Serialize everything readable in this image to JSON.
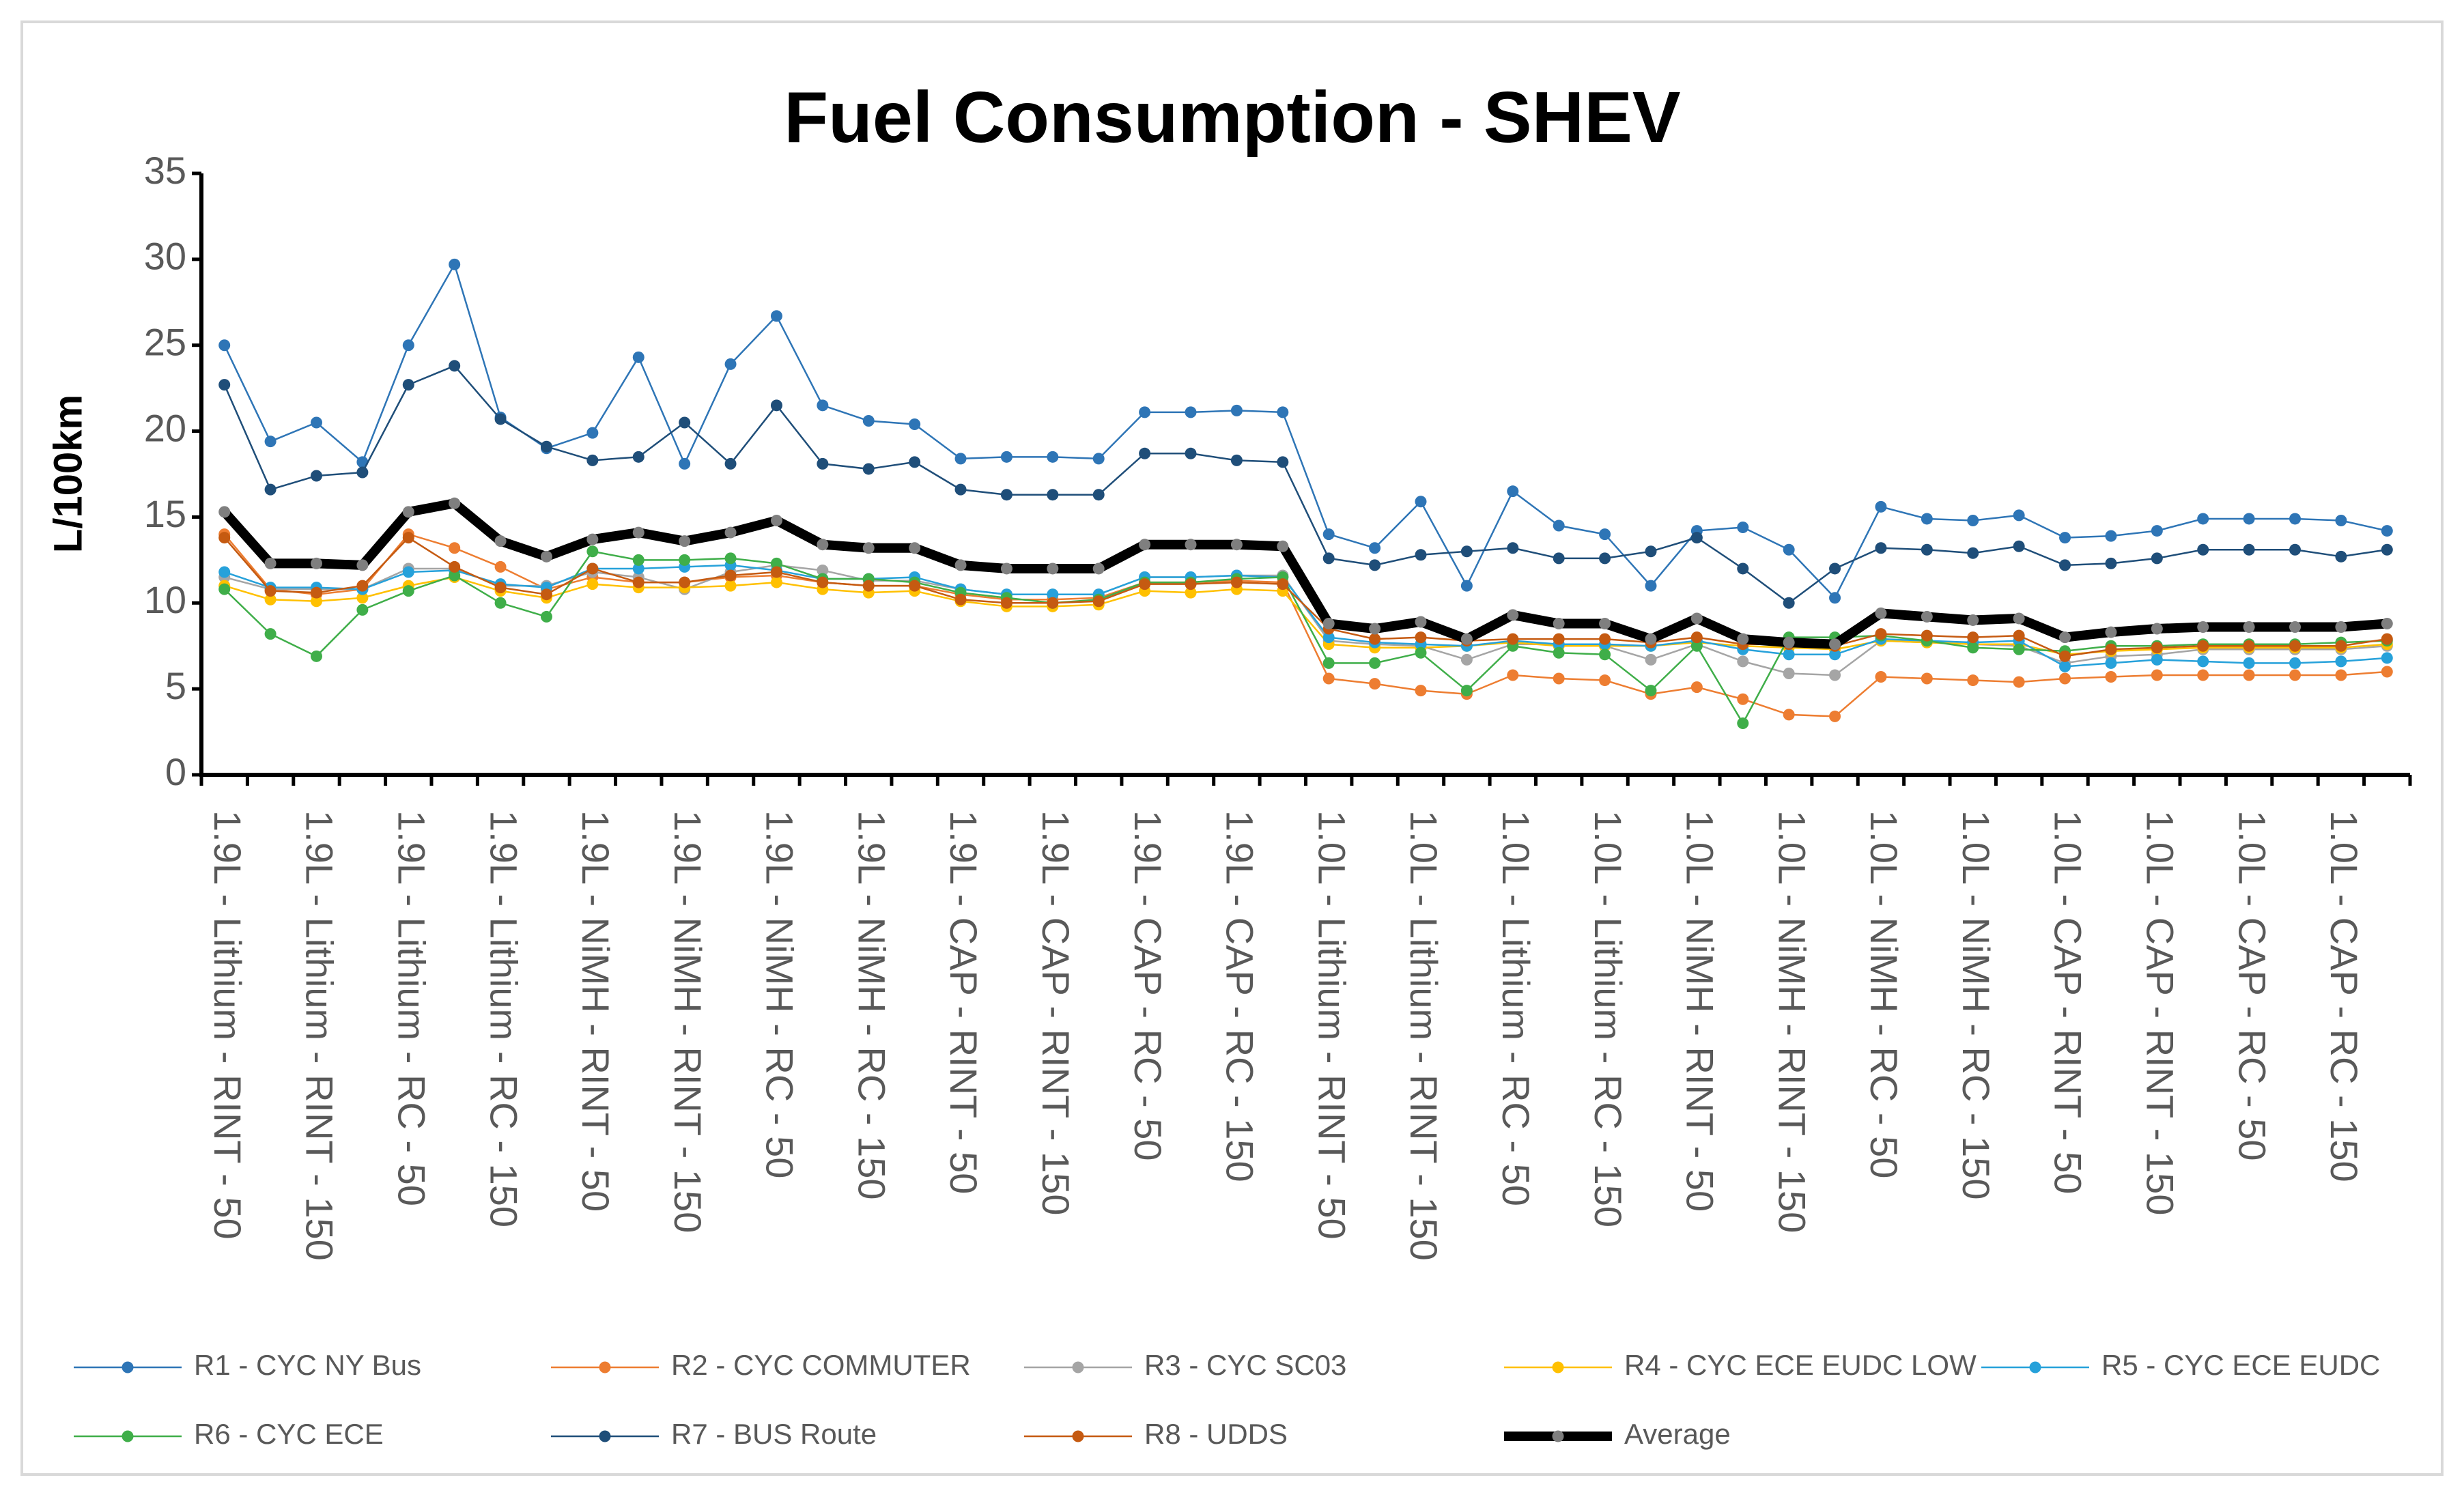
{
  "chart_data": {
    "type": "line",
    "title": "Fuel Consumption - SHEV",
    "y_label": "L/100km",
    "categories": [
      "1.9L - Lithium - RINT - 50",
      null,
      "1.9L - Lithium - RINT - 150",
      null,
      "1.9L - Lithium - RC - 50",
      null,
      "1.9L - Lithium - RC - 150",
      null,
      "1.9L - NiMH - RINT - 50",
      null,
      "1.9L - NiMH - RINT - 150",
      null,
      "1.9L - NiMH - RC - 50",
      null,
      "1.9L - NiMH - RC - 150",
      null,
      "1.9L - CAP - RINT - 50",
      null,
      "1.9L - CAP - RINT - 150",
      null,
      "1.9L - CAP - RC - 50",
      null,
      "1.9L - CAP - RC - 150",
      null,
      "1.0L - Lithium - RINT - 50",
      null,
      "1.0L - Lithium - RINT - 150",
      null,
      "1.0L - Lithium - RC - 50",
      null,
      "1.0L - Lithium - RC - 150",
      null,
      "1.0L - NiMH - RINT - 50",
      null,
      "1.0L - NiMH - RINT - 150",
      null,
      "1.0L - NiMH - RC - 50",
      null,
      "1.0L - NiMH - RC - 150",
      null,
      "1.0L - CAP - RINT - 50",
      null,
      "1.0L - CAP - RINT - 150",
      null,
      "1.0L - CAP - RC - 50",
      null,
      "1.0L - CAP - RC - 150",
      null
    ],
    "ylim": [
      0,
      35
    ],
    "yticks": [
      0,
      5,
      10,
      15,
      20,
      25,
      30,
      35
    ],
    "grid": false,
    "legend": "bottom",
    "series": [
      {
        "name": "R1 - CYC NY Bus",
        "color": "#2e75b6",
        "values": [
          25,
          19.4,
          20.5,
          18.2,
          25,
          29.7,
          20.8,
          19,
          19.9,
          24.3,
          18.1,
          23.9,
          26.7,
          21.5,
          20.6,
          20.4,
          18.4,
          18.5,
          18.5,
          18.4,
          21.1,
          21.1,
          21.2,
          21.1,
          14,
          13.2,
          15.9,
          11,
          16.5,
          14.5,
          14,
          11,
          14.2,
          14.4,
          13.1,
          10.3,
          15.6,
          14.9,
          14.8,
          15.1,
          13.8,
          13.9,
          14.2,
          14.9,
          14.9,
          14.9,
          14.8,
          14.2
        ]
      },
      {
        "name": "R2 - CYC COMMUTER",
        "color": "#ed7d31",
        "values": [
          14,
          10.8,
          10.5,
          10.8,
          14,
          13.2,
          12.1,
          10.8,
          11.5,
          11.2,
          11.2,
          11.5,
          11.6,
          11.2,
          11,
          11,
          10.5,
          10.2,
          10.2,
          10.3,
          11.2,
          11.2,
          11.3,
          11.2,
          5.6,
          5.3,
          4.9,
          4.7,
          5.8,
          5.6,
          5.5,
          4.7,
          5.1,
          4.4,
          3.5,
          3.4,
          5.7,
          5.6,
          5.5,
          5.4,
          5.6,
          5.7,
          5.8,
          5.8,
          5.8,
          5.8,
          5.8,
          6
        ]
      },
      {
        "name": "R3 - CYC SC03",
        "color": "#a5a5a5",
        "values": [
          11.5,
          10.8,
          10.8,
          10.8,
          12,
          12,
          11,
          11,
          11.8,
          11.5,
          10.8,
          11.8,
          12.2,
          11.9,
          11.3,
          11.3,
          10.8,
          10.5,
          10.5,
          10.5,
          11.5,
          11.5,
          11.6,
          11.6,
          7.8,
          7.6,
          7.5,
          6.7,
          7.6,
          7.6,
          7.5,
          6.7,
          7.6,
          6.6,
          5.9,
          5.8,
          7.8,
          7.7,
          7.6,
          7.5,
          6.5,
          6.9,
          7,
          7.3,
          7.3,
          7.3,
          7.3,
          7.5
        ]
      },
      {
        "name": "R4 - CYC ECE EUDC LOW",
        "color": "#ffc000",
        "values": [
          11,
          10.2,
          10.1,
          10.3,
          11,
          11.5,
          10.7,
          10.3,
          11.1,
          10.9,
          10.9,
          11,
          11.2,
          10.8,
          10.6,
          10.7,
          10.1,
          9.8,
          9.8,
          9.9,
          10.7,
          10.6,
          10.8,
          10.7,
          7.6,
          7.4,
          7.4,
          7.5,
          7.7,
          7.5,
          7.5,
          7.5,
          7.7,
          7.5,
          7.4,
          7.3,
          7.8,
          7.7,
          7.6,
          7.6,
          7,
          7.2,
          7.3,
          7.4,
          7.4,
          7.4,
          7.4,
          7.6
        ]
      },
      {
        "name": "R5 - CYC ECE EUDC",
        "color": "#26a1da",
        "values": [
          11.8,
          10.9,
          10.9,
          10.8,
          11.8,
          11.9,
          11.1,
          10.9,
          12,
          12,
          12.1,
          12.2,
          11.9,
          11.4,
          11.4,
          11.5,
          10.8,
          10.5,
          10.5,
          10.5,
          11.5,
          11.5,
          11.6,
          11.5,
          8,
          7.7,
          7.6,
          7.5,
          7.8,
          7.6,
          7.6,
          7.5,
          7.8,
          7.3,
          7,
          7,
          7.9,
          7.8,
          7.7,
          7.8,
          6.3,
          6.5,
          6.7,
          6.6,
          6.5,
          6.5,
          6.6,
          6.8
        ]
      },
      {
        "name": "R6 - CYC ECE",
        "color": "#3fae49",
        "values": [
          10.8,
          8.2,
          6.9,
          9.6,
          10.7,
          11.6,
          10,
          9.2,
          13,
          12.5,
          12.5,
          12.6,
          12.3,
          11.4,
          11.4,
          11.2,
          10.6,
          10.3,
          10,
          10.2,
          11.2,
          11.2,
          11.4,
          11.5,
          6.5,
          6.5,
          7.1,
          4.9,
          7.5,
          7.1,
          7,
          4.9,
          7.5,
          3,
          8,
          8,
          8.1,
          7.8,
          7.4,
          7.3,
          7.2,
          7.5,
          7.5,
          7.6,
          7.6,
          7.6,
          7.7,
          7.8
        ]
      },
      {
        "name": "R7 - BUS Route",
        "color": "#1f4e79",
        "values": [
          22.7,
          16.6,
          17.4,
          17.6,
          22.7,
          23.8,
          20.7,
          19.1,
          18.3,
          18.5,
          20.5,
          18.1,
          21.5,
          18.1,
          17.8,
          18.2,
          16.6,
          16.3,
          16.3,
          16.3,
          18.7,
          18.7,
          18.3,
          18.2,
          12.6,
          12.2,
          12.8,
          13,
          13.2,
          12.6,
          12.6,
          13,
          13.8,
          12,
          10,
          12,
          13.2,
          13.1,
          12.9,
          13.3,
          12.2,
          12.3,
          12.6,
          13.1,
          13.1,
          13.1,
          12.7,
          13.1
        ]
      },
      {
        "name": "R8 - UDDS",
        "color": "#c55a11",
        "values": [
          13.8,
          10.7,
          10.6,
          11,
          13.8,
          12.1,
          10.9,
          10.5,
          12,
          11.2,
          11.2,
          11.6,
          11.8,
          11.2,
          11,
          11,
          10.2,
          10,
          10,
          10.1,
          11.1,
          11.1,
          11.2,
          11.1,
          8.5,
          7.9,
          8,
          7.8,
          7.9,
          7.9,
          7.9,
          7.7,
          8,
          7.6,
          7.6,
          7.5,
          8.2,
          8.1,
          8,
          8.1,
          6.9,
          7.3,
          7.4,
          7.5,
          7.5,
          7.5,
          7.5,
          7.9
        ]
      },
      {
        "name": "Average",
        "color": "#000000",
        "marker_color": "#7f7f7f",
        "values": [
          15.3,
          12.3,
          12.3,
          12.2,
          15.3,
          15.8,
          13.6,
          12.7,
          13.7,
          14.1,
          13.6,
          14.1,
          14.8,
          13.4,
          13.2,
          13.2,
          12.2,
          12,
          12,
          12,
          13.4,
          13.4,
          13.4,
          13.3,
          8.8,
          8.5,
          8.9,
          7.9,
          9.3,
          8.8,
          8.8,
          7.9,
          9.1,
          7.9,
          7.7,
          7.6,
          9.4,
          9.2,
          9,
          9.1,
          8,
          8.3,
          8.5,
          8.6,
          8.6,
          8.6,
          8.6,
          8.8
        ]
      }
    ]
  }
}
